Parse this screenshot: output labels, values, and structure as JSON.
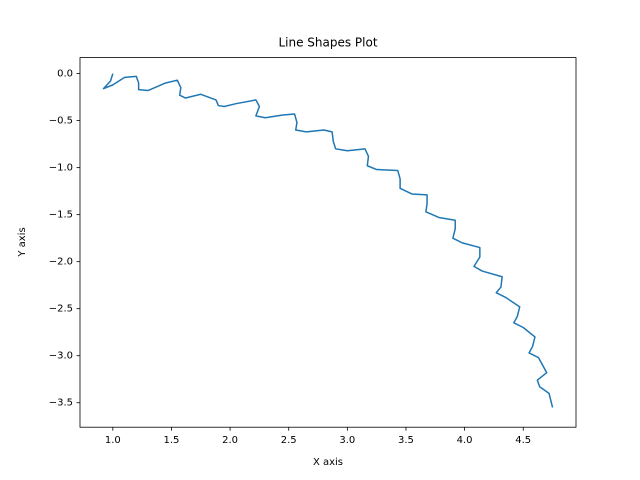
{
  "chart_data": {
    "type": "line",
    "title": "Line Shapes Plot",
    "xlabel": "X axis",
    "ylabel": "Y axis",
    "x": [
      1.0,
      0.98,
      0.92,
      1.0,
      1.1,
      1.2,
      1.22,
      1.22,
      1.3,
      1.45,
      1.55,
      1.58,
      1.57,
      1.62,
      1.75,
      1.88,
      1.9,
      1.95,
      2.05,
      2.22,
      2.25,
      2.22,
      2.3,
      2.45,
      2.55,
      2.57,
      2.56,
      2.65,
      2.8,
      2.87,
      2.88,
      2.9,
      3.0,
      3.15,
      3.18,
      3.17,
      3.25,
      3.43,
      3.45,
      3.45,
      3.55,
      3.68,
      3.68,
      3.67,
      3.78,
      3.92,
      3.92,
      3.9,
      3.98,
      4.13,
      4.13,
      4.08,
      4.15,
      4.32,
      4.31,
      4.27,
      4.35,
      4.47,
      4.45,
      4.42,
      4.5,
      4.6,
      4.58,
      4.55,
      4.63,
      4.7,
      4.62,
      4.64,
      4.72,
      4.75
    ],
    "series": [
      {
        "color": "#1f77b4",
        "values": [
          0.0,
          -0.08,
          -0.16,
          -0.12,
          -0.04,
          -0.03,
          -0.1,
          -0.17,
          -0.18,
          -0.1,
          -0.07,
          -0.15,
          -0.23,
          -0.26,
          -0.22,
          -0.28,
          -0.34,
          -0.35,
          -0.32,
          -0.28,
          -0.35,
          -0.45,
          -0.47,
          -0.44,
          -0.43,
          -0.52,
          -0.6,
          -0.62,
          -0.6,
          -0.62,
          -0.72,
          -0.8,
          -0.82,
          -0.8,
          -0.88,
          -0.98,
          -1.02,
          -1.03,
          -1.12,
          -1.22,
          -1.28,
          -1.29,
          -1.38,
          -1.47,
          -1.53,
          -1.56,
          -1.65,
          -1.75,
          -1.8,
          -1.85,
          -1.95,
          -2.05,
          -2.1,
          -2.16,
          -2.27,
          -2.33,
          -2.38,
          -2.48,
          -2.58,
          -2.65,
          -2.7,
          -2.8,
          -2.9,
          -2.97,
          -3.02,
          -3.18,
          -3.26,
          -3.33,
          -3.4,
          -3.55
        ]
      }
    ],
    "xlim": [
      0.72,
      4.95
    ],
    "ylim": [
      -3.76,
      0.17
    ],
    "xticks": [
      {
        "value": 1.0,
        "label": "1.0"
      },
      {
        "value": 1.5,
        "label": "1.5"
      },
      {
        "value": 2.0,
        "label": "2.0"
      },
      {
        "value": 2.5,
        "label": "2.5"
      },
      {
        "value": 3.0,
        "label": "3.0"
      },
      {
        "value": 3.5,
        "label": "3.5"
      },
      {
        "value": 4.0,
        "label": "4.0"
      },
      {
        "value": 4.5,
        "label": "4.5"
      }
    ],
    "yticks": [
      {
        "value": 0.0,
        "label": "0.0"
      },
      {
        "value": -0.5,
        "label": "−0.5"
      },
      {
        "value": -1.0,
        "label": "−1.0"
      },
      {
        "value": -1.5,
        "label": "−1.5"
      },
      {
        "value": -2.0,
        "label": "−2.0"
      },
      {
        "value": -2.5,
        "label": "−2.5"
      },
      {
        "value": -3.0,
        "label": "−3.0"
      },
      {
        "value": -3.5,
        "label": "−3.5"
      }
    ]
  }
}
